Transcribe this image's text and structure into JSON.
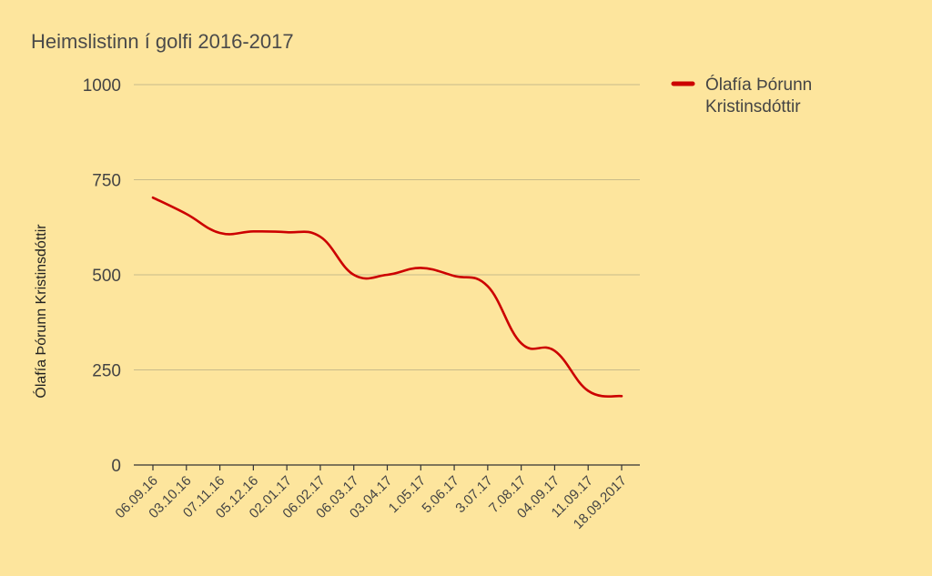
{
  "chart_data": {
    "type": "line",
    "title": "Heimslistinn í golfi 2016-2017",
    "ylabel": "Ólafía Þórunn Kristinsdóttir",
    "xlabel": "",
    "ylim": [
      0,
      1000
    ],
    "yticks": [
      0,
      250,
      500,
      750,
      1000
    ],
    "categories": [
      "06.09.16",
      "03.10.16",
      "07.11.16",
      "05.12.16",
      "02.01.17",
      "06.02.17",
      "06.03.17",
      "03.04.17",
      "1.05.17",
      "5.06.17",
      "3.07.17",
      "7.08.17",
      "04.09.17",
      "11.09.17",
      "18.09.2017"
    ],
    "series": [
      {
        "name": "Ólafía Þórunn Kristinsdóttir",
        "color": "#cc0000",
        "values": [
          703,
          660,
          610,
          614,
          612,
          600,
          500,
          500,
          518,
          497,
          470,
          320,
          300,
          195,
          181
        ]
      }
    ],
    "legend_position": "top-right",
    "grid": true
  }
}
